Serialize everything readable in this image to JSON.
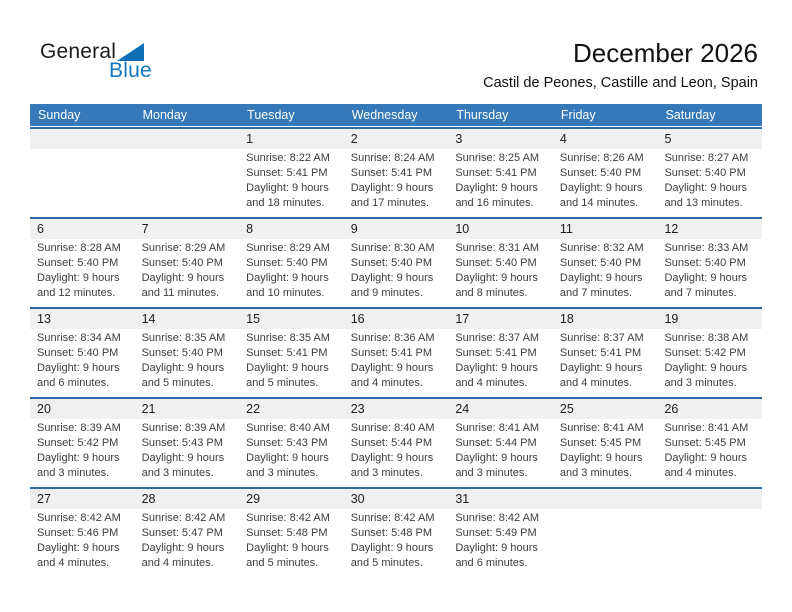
{
  "logo": {
    "general": "General",
    "blue": "Blue"
  },
  "header": {
    "title": "December 2026",
    "subtitle": "Castil de Peones, Castille and Leon, Spain"
  },
  "weekdays": [
    "Sunday",
    "Monday",
    "Tuesday",
    "Wednesday",
    "Thursday",
    "Friday",
    "Saturday"
  ],
  "weeks": [
    [
      {
        "day": "",
        "sunrise": "",
        "sunset": "",
        "daylight": ""
      },
      {
        "day": "",
        "sunrise": "",
        "sunset": "",
        "daylight": ""
      },
      {
        "day": "1",
        "sunrise": "Sunrise: 8:22 AM",
        "sunset": "Sunset: 5:41 PM",
        "daylight": "Daylight: 9 hours and 18 minutes."
      },
      {
        "day": "2",
        "sunrise": "Sunrise: 8:24 AM",
        "sunset": "Sunset: 5:41 PM",
        "daylight": "Daylight: 9 hours and 17 minutes."
      },
      {
        "day": "3",
        "sunrise": "Sunrise: 8:25 AM",
        "sunset": "Sunset: 5:41 PM",
        "daylight": "Daylight: 9 hours and 16 minutes."
      },
      {
        "day": "4",
        "sunrise": "Sunrise: 8:26 AM",
        "sunset": "Sunset: 5:40 PM",
        "daylight": "Daylight: 9 hours and 14 minutes."
      },
      {
        "day": "5",
        "sunrise": "Sunrise: 8:27 AM",
        "sunset": "Sunset: 5:40 PM",
        "daylight": "Daylight: 9 hours and 13 minutes."
      }
    ],
    [
      {
        "day": "6",
        "sunrise": "Sunrise: 8:28 AM",
        "sunset": "Sunset: 5:40 PM",
        "daylight": "Daylight: 9 hours and 12 minutes."
      },
      {
        "day": "7",
        "sunrise": "Sunrise: 8:29 AM",
        "sunset": "Sunset: 5:40 PM",
        "daylight": "Daylight: 9 hours and 11 minutes."
      },
      {
        "day": "8",
        "sunrise": "Sunrise: 8:29 AM",
        "sunset": "Sunset: 5:40 PM",
        "daylight": "Daylight: 9 hours and 10 minutes."
      },
      {
        "day": "9",
        "sunrise": "Sunrise: 8:30 AM",
        "sunset": "Sunset: 5:40 PM",
        "daylight": "Daylight: 9 hours and 9 minutes."
      },
      {
        "day": "10",
        "sunrise": "Sunrise: 8:31 AM",
        "sunset": "Sunset: 5:40 PM",
        "daylight": "Daylight: 9 hours and 8 minutes."
      },
      {
        "day": "11",
        "sunrise": "Sunrise: 8:32 AM",
        "sunset": "Sunset: 5:40 PM",
        "daylight": "Daylight: 9 hours and 7 minutes."
      },
      {
        "day": "12",
        "sunrise": "Sunrise: 8:33 AM",
        "sunset": "Sunset: 5:40 PM",
        "daylight": "Daylight: 9 hours and 7 minutes."
      }
    ],
    [
      {
        "day": "13",
        "sunrise": "Sunrise: 8:34 AM",
        "sunset": "Sunset: 5:40 PM",
        "daylight": "Daylight: 9 hours and 6 minutes."
      },
      {
        "day": "14",
        "sunrise": "Sunrise: 8:35 AM",
        "sunset": "Sunset: 5:40 PM",
        "daylight": "Daylight: 9 hours and 5 minutes."
      },
      {
        "day": "15",
        "sunrise": "Sunrise: 8:35 AM",
        "sunset": "Sunset: 5:41 PM",
        "daylight": "Daylight: 9 hours and 5 minutes."
      },
      {
        "day": "16",
        "sunrise": "Sunrise: 8:36 AM",
        "sunset": "Sunset: 5:41 PM",
        "daylight": "Daylight: 9 hours and 4 minutes."
      },
      {
        "day": "17",
        "sunrise": "Sunrise: 8:37 AM",
        "sunset": "Sunset: 5:41 PM",
        "daylight": "Daylight: 9 hours and 4 minutes."
      },
      {
        "day": "18",
        "sunrise": "Sunrise: 8:37 AM",
        "sunset": "Sunset: 5:41 PM",
        "daylight": "Daylight: 9 hours and 4 minutes."
      },
      {
        "day": "19",
        "sunrise": "Sunrise: 8:38 AM",
        "sunset": "Sunset: 5:42 PM",
        "daylight": "Daylight: 9 hours and 3 minutes."
      }
    ],
    [
      {
        "day": "20",
        "sunrise": "Sunrise: 8:39 AM",
        "sunset": "Sunset: 5:42 PM",
        "daylight": "Daylight: 9 hours and 3 minutes."
      },
      {
        "day": "21",
        "sunrise": "Sunrise: 8:39 AM",
        "sunset": "Sunset: 5:43 PM",
        "daylight": "Daylight: 9 hours and 3 minutes."
      },
      {
        "day": "22",
        "sunrise": "Sunrise: 8:40 AM",
        "sunset": "Sunset: 5:43 PM",
        "daylight": "Daylight: 9 hours and 3 minutes."
      },
      {
        "day": "23",
        "sunrise": "Sunrise: 8:40 AM",
        "sunset": "Sunset: 5:44 PM",
        "daylight": "Daylight: 9 hours and 3 minutes."
      },
      {
        "day": "24",
        "sunrise": "Sunrise: 8:41 AM",
        "sunset": "Sunset: 5:44 PM",
        "daylight": "Daylight: 9 hours and 3 minutes."
      },
      {
        "day": "25",
        "sunrise": "Sunrise: 8:41 AM",
        "sunset": "Sunset: 5:45 PM",
        "daylight": "Daylight: 9 hours and 3 minutes."
      },
      {
        "day": "26",
        "sunrise": "Sunrise: 8:41 AM",
        "sunset": "Sunset: 5:45 PM",
        "daylight": "Daylight: 9 hours and 4 minutes."
      }
    ],
    [
      {
        "day": "27",
        "sunrise": "Sunrise: 8:42 AM",
        "sunset": "Sunset: 5:46 PM",
        "daylight": "Daylight: 9 hours and 4 minutes."
      },
      {
        "day": "28",
        "sunrise": "Sunrise: 8:42 AM",
        "sunset": "Sunset: 5:47 PM",
        "daylight": "Daylight: 9 hours and 4 minutes."
      },
      {
        "day": "29",
        "sunrise": "Sunrise: 8:42 AM",
        "sunset": "Sunset: 5:48 PM",
        "daylight": "Daylight: 9 hours and 5 minutes."
      },
      {
        "day": "30",
        "sunrise": "Sunrise: 8:42 AM",
        "sunset": "Sunset: 5:48 PM",
        "daylight": "Daylight: 9 hours and 5 minutes."
      },
      {
        "day": "31",
        "sunrise": "Sunrise: 8:42 AM",
        "sunset": "Sunset: 5:49 PM",
        "daylight": "Daylight: 9 hours and 6 minutes."
      },
      {
        "day": "",
        "sunrise": "",
        "sunset": "",
        "daylight": ""
      },
      {
        "day": "",
        "sunrise": "",
        "sunset": "",
        "daylight": ""
      }
    ]
  ],
  "colors": {
    "header_bar": "#3579b8",
    "row_separator": "#2b6ba8",
    "day_number_band": "#f0f0f0",
    "logo_blue": "#1477c0",
    "logo_triangle": "#0d6eb6",
    "day_number_text": "#1d1d1d",
    "detail_text": "#3d3d3d"
  }
}
